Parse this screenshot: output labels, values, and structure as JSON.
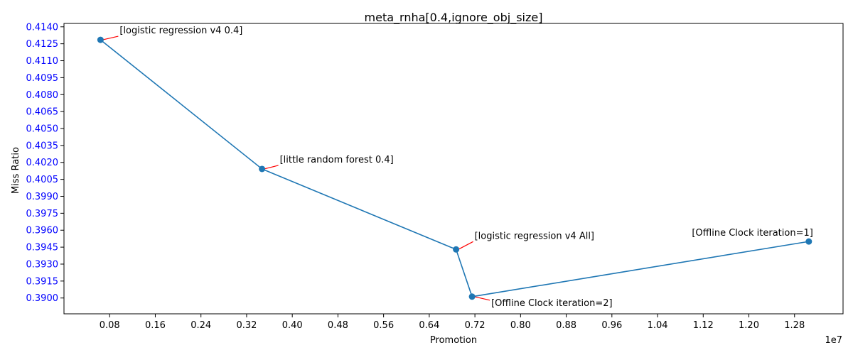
{
  "chart_data": {
    "type": "line",
    "title": "meta_rnha[0.4,ignore_obj_size]",
    "xlabel": "Promotion",
    "ylabel": "Miss Ratio",
    "x_offset_text": "1e7",
    "xlim": [
      0.0,
      1.365
    ],
    "ylim": [
      0.3886,
      0.4143
    ],
    "x_ticks": [
      0.08,
      0.16,
      0.24,
      0.32,
      0.4,
      0.48,
      0.56,
      0.64,
      0.72,
      0.8,
      0.88,
      0.96,
      1.04,
      1.12,
      1.2,
      1.28
    ],
    "x_tick_labels": [
      "0.08",
      "0.16",
      "0.24",
      "0.32",
      "0.40",
      "0.48",
      "0.56",
      "0.64",
      "0.72",
      "0.80",
      "0.88",
      "0.96",
      "1.04",
      "1.12",
      "1.20",
      "1.28"
    ],
    "y_ticks": [
      0.39,
      0.3915,
      0.393,
      0.3945,
      0.396,
      0.3975,
      0.399,
      0.4005,
      0.402,
      0.4035,
      0.405,
      0.4065,
      0.408,
      0.4095,
      0.411,
      0.4125,
      0.414
    ],
    "y_tick_labels": [
      "0.3900",
      "0.3915",
      "0.3930",
      "0.3945",
      "0.3960",
      "0.3975",
      "0.3990",
      "0.4005",
      "0.4020",
      "0.4035",
      "0.4050",
      "0.4065",
      "0.4080",
      "0.4095",
      "0.4110",
      "0.4125",
      "0.4140"
    ],
    "grid": false,
    "series": [
      {
        "color": "#1f77b4",
        "points": [
          {
            "x": 0.064,
            "y": 0.41285,
            "label": "[logistic regression v4 0.4]"
          },
          {
            "x": 0.347,
            "y": 0.40142,
            "label": "[little random forest 0.4]"
          },
          {
            "x": 0.687,
            "y": 0.3943,
            "label": "[logistic regression v4 All]"
          },
          {
            "x": 0.715,
            "y": 0.39012,
            "label": "[Offline Clock iteration=2]"
          },
          {
            "x": 1.305,
            "y": 0.395,
            "label": "[Offline Clock iteration=1]"
          }
        ]
      }
    ],
    "annotation_arrow_color": "#ff0000",
    "ytick_label_color": "#0000ff"
  }
}
